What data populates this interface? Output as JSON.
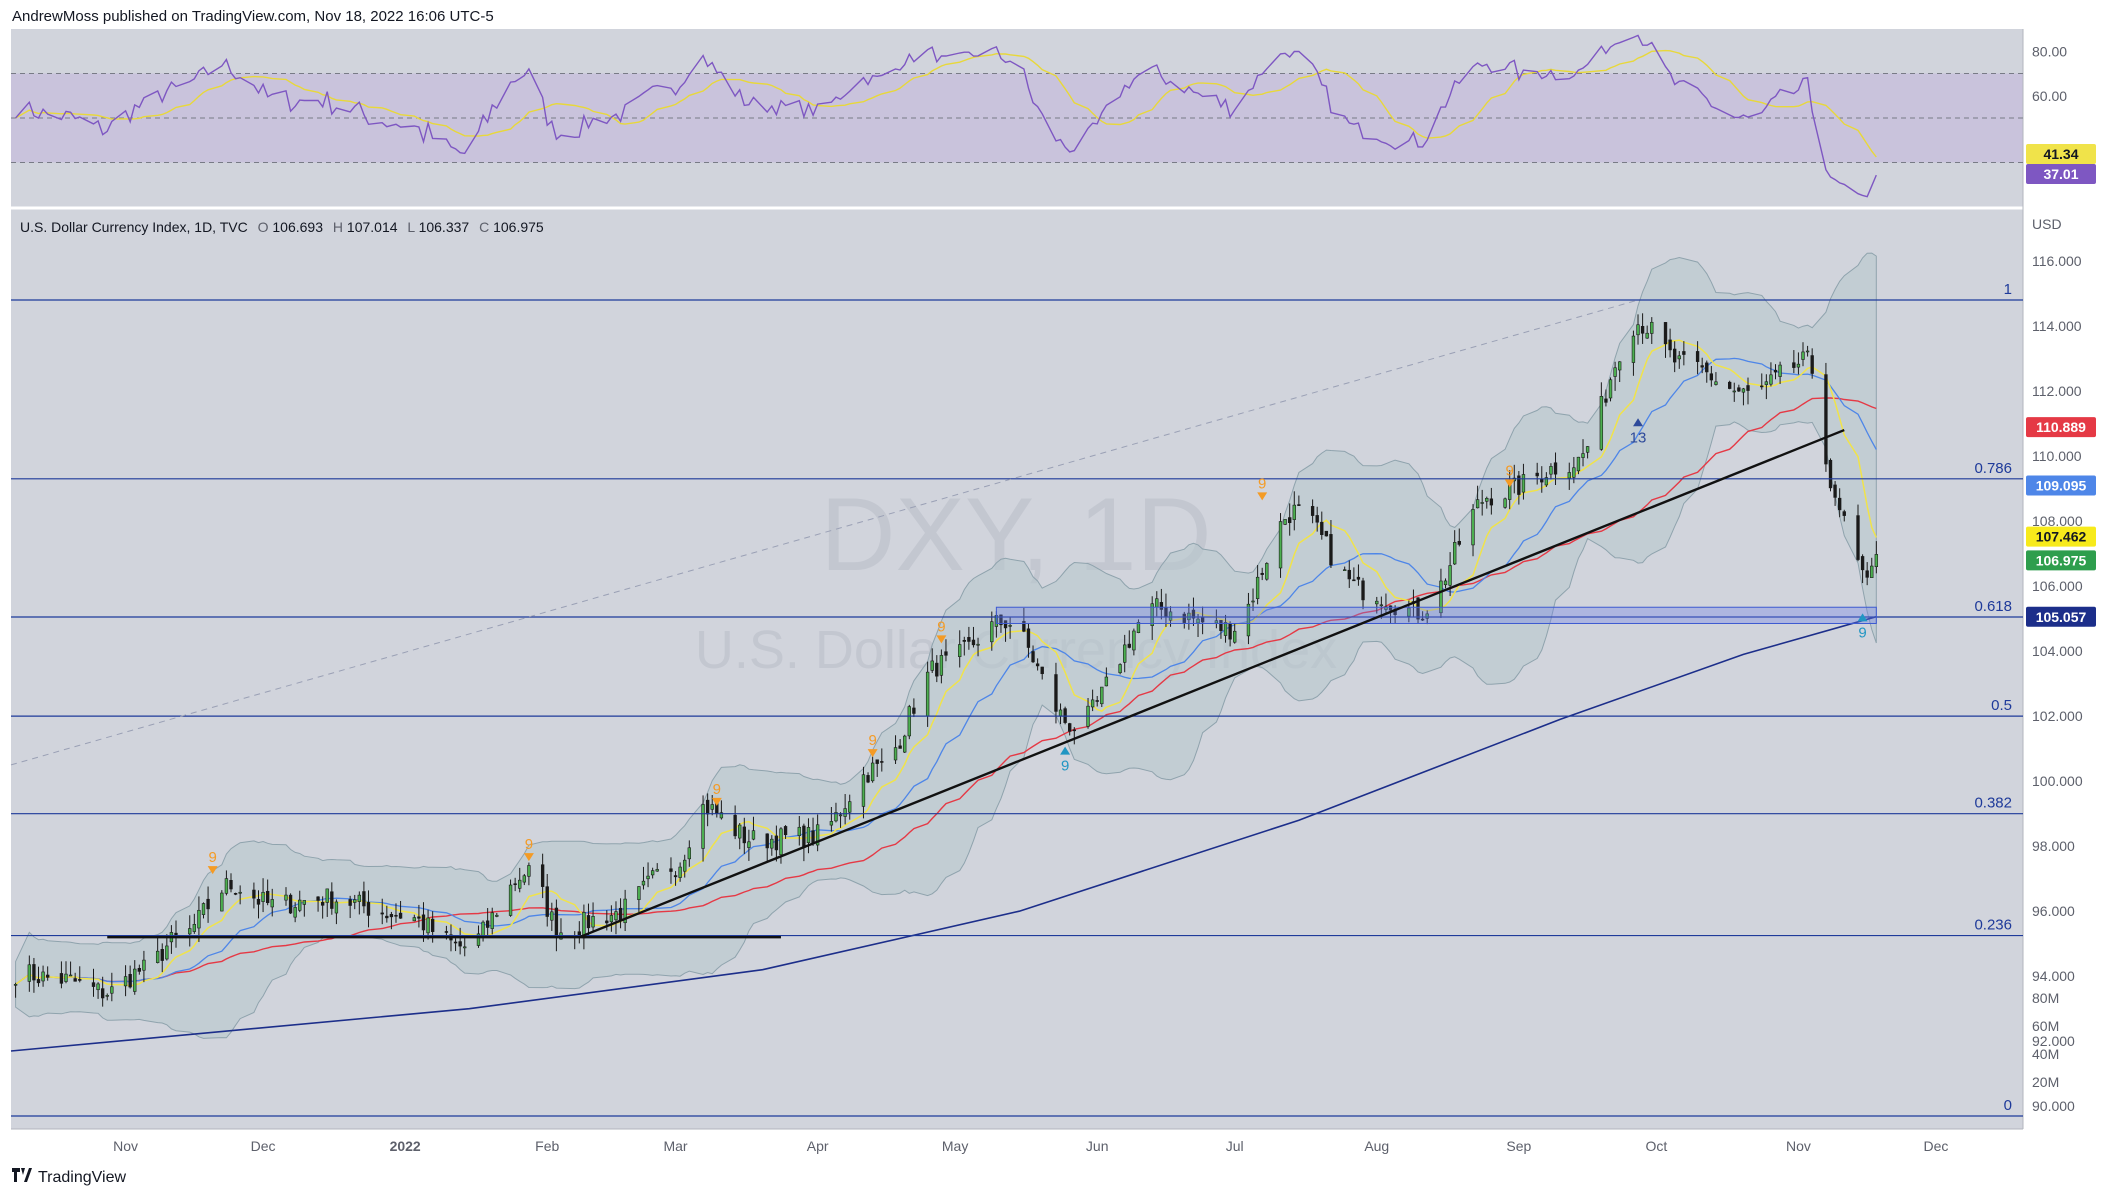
{
  "header": {
    "text": "AndrewMoss published on TradingView.com, Nov 18, 2022 16:06 UTC-5"
  },
  "footer": {
    "brand": "TradingView"
  },
  "legend": {
    "symbol": "U.S. Dollar Currency Index, 1D, TVC",
    "open_label": "O",
    "open": "106.693",
    "high_label": "H",
    "high": "107.014",
    "low_label": "L",
    "low": "106.337",
    "close_label": "C",
    "close": "106.975"
  },
  "watermark": {
    "ticker": "DXY, 1D",
    "name": "U.S. Dollar Currency Index"
  },
  "currency_label": "USD",
  "colors": {
    "background": "#d1d4dc",
    "rsi_band": "#c9c3dc",
    "rsi_line": "#7e57c2",
    "rsi_ma": "#e8d83a",
    "fib_line": "#1e3a9a",
    "ma_red": "#e53945",
    "ma_blue": "#4e86e8",
    "ma_yellow": "#f0e34a",
    "ma_navy": "#1c2e8a",
    "up_candle": "#4caf50",
    "down_candle": "#1a1a1a",
    "bb_fill": "#b7c6cc",
    "signal_orange": "#f49b25",
    "signal_teal": "#2196c3",
    "signal_navy": "#2e4a9a"
  },
  "chart_data": [
    {
      "type": "line",
      "panel": "RSI",
      "y_ticks": [
        "80.00",
        "60.00"
      ],
      "ylim": [
        10,
        90
      ],
      "band": [
        30,
        70
      ],
      "midline": 50,
      "series": [],
      "last_values": [
        {
          "value": "41.34",
          "color": "#f0e34a",
          "text_color": "#131722"
        },
        {
          "value": "37.01",
          "color": "#7e57c2",
          "text_color": "#ffffff"
        }
      ]
    },
    {
      "type": "candlestick",
      "panel": "price",
      "x_ticks": [
        "Nov",
        "Dec",
        "2022",
        "Feb",
        "Mar",
        "Apr",
        "May",
        "Jun",
        "Jul",
        "Aug",
        "Sep",
        "Oct",
        "Nov",
        "Dec"
      ],
      "y_ticks": [
        "116.000",
        "114.000",
        "112.000",
        "110.000",
        "108.000",
        "106.000",
        "104.000",
        "102.000",
        "100.000",
        "98.000",
        "96.000",
        "94.000",
        "92.000",
        "90.000"
      ],
      "ylim": [
        89.3,
        117.6
      ],
      "x_range": [
        "2021-10-07",
        "2022-12-20"
      ],
      "fib_levels": [
        {
          "label": "1",
          "value": 114.8
        },
        {
          "label": "0.786",
          "value": 109.3
        },
        {
          "label": "0.618",
          "value": 105.05
        },
        {
          "label": "0.5",
          "value": 102.0
        },
        {
          "label": "0.382",
          "value": 99.0
        },
        {
          "label": "0.236",
          "value": 95.25
        },
        {
          "label": "0",
          "value": 89.7
        }
      ],
      "price_tags": [
        {
          "value": "110.889",
          "color": "#e53945",
          "text_color": "#ffffff"
        },
        {
          "value": "109.095",
          "color": "#4e86e8",
          "text_color": "#ffffff"
        },
        {
          "value": "107.462",
          "color": "#f7ea1b",
          "text_color": "#131722"
        },
        {
          "value": "106.975",
          "color": "#2e9e4d",
          "text_color": "#ffffff"
        },
        {
          "value": "105.057",
          "color": "#1c2e8a",
          "text_color": "#ffffff"
        }
      ],
      "signals": [
        {
          "label": "9",
          "date": "2021-11-20",
          "price": 97.2,
          "kind": "sell"
        },
        {
          "label": "9",
          "date": "2022-01-28",
          "price": 97.6,
          "kind": "sell"
        },
        {
          "label": "9",
          "date": "2022-03-10",
          "price": 99.3,
          "kind": "sell"
        },
        {
          "label": "9",
          "date": "2022-04-13",
          "price": 100.8,
          "kind": "sell"
        },
        {
          "label": "9",
          "date": "2022-04-28",
          "price": 104.3,
          "kind": "sell"
        },
        {
          "label": "9",
          "date": "2022-05-25",
          "price": 101.0,
          "kind": "buy"
        },
        {
          "label": "9",
          "date": "2022-07-07",
          "price": 108.7,
          "kind": "sell"
        },
        {
          "label": "9",
          "date": "2022-08-30",
          "price": 109.1,
          "kind": "sell"
        },
        {
          "label": "13",
          "date": "2022-09-27",
          "price": 111.1,
          "kind": "buy13"
        },
        {
          "label": "9",
          "date": "2022-11-15",
          "price": 105.1,
          "kind": "buy"
        }
      ],
      "close": [
        {
          "date": "2021-10-08",
          "value": 94.1
        },
        {
          "date": "2021-10-18",
          "value": 93.9
        },
        {
          "date": "2021-10-28",
          "value": 93.5
        },
        {
          "date": "2021-11-05",
          "value": 94.2
        },
        {
          "date": "2021-11-12",
          "value": 95.1
        },
        {
          "date": "2021-11-24",
          "value": 96.8
        },
        {
          "date": "2021-12-03",
          "value": 96.2
        },
        {
          "date": "2021-12-15",
          "value": 96.4
        },
        {
          "date": "2021-12-31",
          "value": 95.9
        },
        {
          "date": "2022-01-14",
          "value": 94.9
        },
        {
          "date": "2022-01-28",
          "value": 97.2
        },
        {
          "date": "2022-02-04",
          "value": 95.4
        },
        {
          "date": "2022-02-15",
          "value": 95.9
        },
        {
          "date": "2022-03-01",
          "value": 97.4
        },
        {
          "date": "2022-03-07",
          "value": 99.2
        },
        {
          "date": "2022-03-18",
          "value": 98.2
        },
        {
          "date": "2022-03-31",
          "value": 98.3
        },
        {
          "date": "2022-04-14",
          "value": 100.4
        },
        {
          "date": "2022-04-28",
          "value": 103.6
        },
        {
          "date": "2022-05-12",
          "value": 104.9
        },
        {
          "date": "2022-05-27",
          "value": 101.7
        },
        {
          "date": "2022-06-14",
          "value": 105.3
        },
        {
          "date": "2022-06-30",
          "value": 104.7
        },
        {
          "date": "2022-07-14",
          "value": 108.3
        },
        {
          "date": "2022-07-29",
          "value": 105.9
        },
        {
          "date": "2022-08-10",
          "value": 105.2
        },
        {
          "date": "2022-08-26",
          "value": 108.8
        },
        {
          "date": "2022-09-13",
          "value": 109.8
        },
        {
          "date": "2022-09-27",
          "value": 114.1
        },
        {
          "date": "2022-10-07",
          "value": 112.8
        },
        {
          "date": "2022-10-21",
          "value": 111.9
        },
        {
          "date": "2022-11-03",
          "value": 112.9
        },
        {
          "date": "2022-11-10",
          "value": 108.2
        },
        {
          "date": "2022-11-15",
          "value": 106.3
        },
        {
          "date": "2022-11-18",
          "value": 106.975
        }
      ]
    },
    {
      "type": "bar",
      "panel": "volume",
      "y_ticks": [
        "80M",
        "60M",
        "40M",
        "20M"
      ],
      "ylim": [
        0,
        100
      ],
      "series": []
    }
  ]
}
